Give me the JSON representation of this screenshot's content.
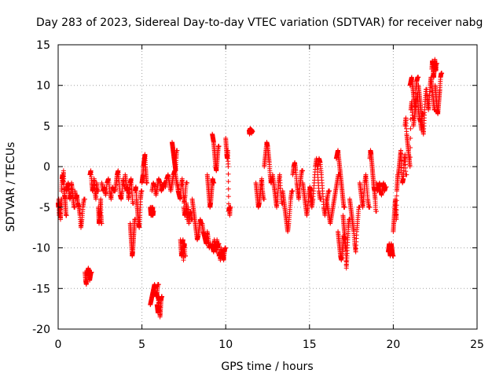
{
  "chart_data": {
    "type": "scatter",
    "title": "Day 283 of 2023, Sidereal Day-to-day VTEC variation (SDTVAR) for receiver nabg",
    "xlabel": "GPS time / hours",
    "ylabel": "SDTVAR / TECUs",
    "xlim": [
      0,
      25
    ],
    "ylim": [
      -20,
      15
    ],
    "xticks": [
      0,
      5,
      10,
      15,
      20,
      25
    ],
    "yticks": [
      -20,
      -15,
      -10,
      -5,
      0,
      5,
      10,
      15
    ],
    "grid": true,
    "marker": "+",
    "color": "#ff0000",
    "series": [
      {
        "name": "SDTVAR",
        "segments": [
          {
            "x0": 0.0,
            "x1": 0.2,
            "y": [
              -4.5,
              -5,
              -4,
              -6,
              -5,
              -4.5,
              -5.5,
              -6.5,
              -5,
              -4
            ]
          },
          {
            "x0": 0.2,
            "x1": 0.5,
            "y": [
              -3,
              -1.5,
              -1,
              -2,
              -0.5,
              -2.5,
              -3.5,
              -4,
              -5,
              -6
            ]
          },
          {
            "x0": 0.5,
            "x1": 1.0,
            "y": [
              -3,
              -2.5,
              -2,
              -3,
              -4,
              -3.5,
              -2,
              -3,
              -4,
              -5
            ]
          },
          {
            "x0": 1.0,
            "x1": 1.6,
            "y": [
              -3,
              -4,
              -3.5,
              -4.5,
              -5,
              -6,
              -7.5,
              -6.5,
              -5,
              -4
            ]
          },
          {
            "x0": 1.6,
            "x1": 2.0,
            "y": [
              -13,
              -14,
              -14.5,
              -13.5,
              -13,
              -12.5,
              -13,
              -14,
              -13.5,
              -13
            ]
          },
          {
            "x0": 1.9,
            "x1": 2.4,
            "y": [
              -1,
              -0.5,
              -2,
              -3,
              -2.5,
              -1.5,
              -3,
              -4,
              -2,
              -3
            ]
          },
          {
            "x0": 2.4,
            "x1": 2.6,
            "y": [
              -5,
              -6,
              -7,
              -6.5,
              -5.5,
              -6,
              -5,
              -4,
              -6,
              -7
            ]
          },
          {
            "x0": 2.6,
            "x1": 3.4,
            "y": [
              -2,
              -3,
              -2.5,
              -3.5,
              -2,
              -1.5,
              -3,
              -4,
              -2.5,
              -3
            ]
          },
          {
            "x0": 3.4,
            "x1": 4.0,
            "y": [
              -3,
              -2,
              -1,
              -0.5,
              -2,
              -3.5,
              -4,
              -3,
              -1.5,
              -2.5
            ]
          },
          {
            "x0": 4.0,
            "x1": 4.5,
            "y": [
              -1,
              -2,
              -3,
              -2.5,
              -4,
              -3,
              -2,
              -1.5,
              -3,
              -4.5
            ]
          },
          {
            "x0": 4.3,
            "x1": 4.6,
            "y": [
              -7,
              -8,
              -9,
              -10,
              -11,
              -10.5,
              -9.5,
              -8.5,
              -7.5,
              -6.5
            ]
          },
          {
            "x0": 4.6,
            "x1": 5.0,
            "y": [
              -3,
              -2.5,
              -4,
              -5,
              -6,
              -7,
              -7.5,
              -6,
              -4,
              -3
            ]
          },
          {
            "x0": 5.0,
            "x1": 5.3,
            "y": [
              -2,
              -1.5,
              -1,
              0,
              0.5,
              1,
              1.5,
              0,
              -1,
              -2
            ]
          },
          {
            "x0": 5.5,
            "x1": 5.7,
            "y": [
              -5,
              -5.5,
              -6,
              -5.5,
              -5,
              -6,
              -5.5,
              -5,
              -6,
              -5.5
            ]
          },
          {
            "x0": 5.5,
            "x1": 6.0,
            "y": [
              -17,
              -16.5,
              -16,
              -15.5,
              -15,
              -14.5,
              -15,
              -16,
              -15.5,
              -14.5
            ]
          },
          {
            "x0": 5.9,
            "x1": 6.2,
            "y": [
              -17,
              -17.5,
              -18,
              -16.5,
              -16,
              -17,
              -18.5,
              -17.5,
              -16.5,
              -16
            ]
          },
          {
            "x0": 5.6,
            "x1": 6.4,
            "y": [
              -3,
              -2,
              -2.5,
              -3.5,
              -2.5,
              -1.5,
              -2,
              -3,
              -2.5,
              -2
            ]
          },
          {
            "x0": 6.4,
            "x1": 7.2,
            "y": [
              -2.5,
              -1.5,
              -1,
              -2,
              -3,
              -2,
              -1,
              -0.5,
              -1.5,
              -2.5
            ]
          },
          {
            "x0": 6.8,
            "x1": 7.1,
            "y": [
              3,
              2.5,
              2,
              1.5,
              1,
              0.5,
              0,
              -0.5,
              1,
              2
            ]
          },
          {
            "x0": 7.1,
            "x1": 7.7,
            "y": [
              -2,
              -3,
              -3.5,
              -4,
              -2.5,
              -1.5,
              -3,
              -4.5,
              -3.5,
              -2
            ]
          },
          {
            "x0": 7.3,
            "x1": 7.6,
            "y": [
              -9,
              -10,
              -11,
              -10.5,
              -9.5,
              -9,
              -11.5,
              -10,
              -9.5,
              -11
            ]
          },
          {
            "x0": 7.5,
            "x1": 8.0,
            "y": [
              -5,
              -6,
              -5.5,
              -4.5,
              -6.5,
              -5,
              -7,
              -6,
              -5.5,
              -6.5
            ]
          },
          {
            "x0": 8.0,
            "x1": 8.6,
            "y": [
              -4,
              -5,
              -6,
              -7,
              -8,
              -9,
              -8.5,
              -7.5,
              -6.5,
              -7
            ]
          },
          {
            "x0": 8.6,
            "x1": 9.2,
            "y": [
              -7,
              -8,
              -8.5,
              -9,
              -9.5,
              -8,
              -9,
              -10,
              -9.5,
              -10
            ]
          },
          {
            "x0": 9.2,
            "x1": 9.6,
            "y": [
              -9.5,
              -10,
              -10.5,
              -9,
              -10,
              -9.5,
              -10.5,
              -9,
              -10,
              -9.5
            ]
          },
          {
            "x0": 8.9,
            "x1": 9.3,
            "y": [
              -1,
              -2,
              -3,
              -4,
              -5,
              -4.5,
              -3.5,
              -2.5,
              -1.5,
              -2
            ]
          },
          {
            "x0": 9.2,
            "x1": 9.6,
            "y": [
              4,
              3.5,
              3,
              2,
              1,
              0,
              -0.5,
              0.5,
              1.5,
              2.5
            ]
          },
          {
            "x0": 9.6,
            "x1": 10.0,
            "y": [
              -11,
              -10.5,
              -11.5,
              -10,
              -11,
              -10.5,
              -11,
              -11.5,
              -10.5,
              -10
            ]
          },
          {
            "x0": 10.0,
            "x1": 10.3,
            "y": [
              3.5,
              2.5,
              1.5,
              1,
              2,
              0,
              -5.5,
              -5,
              -6,
              -5
            ]
          },
          {
            "x0": 11.4,
            "x1": 11.6,
            "y": [
              4.5,
              4,
              4.3,
              4.7,
              4.2,
              4.4,
              4.6,
              4.1,
              4.5,
              4.3
            ]
          },
          {
            "x0": 11.8,
            "x1": 12.3,
            "y": [
              -2,
              -3,
              -4,
              -5,
              -4.5,
              -3.5,
              -2.5,
              -1.5,
              -3,
              -4
            ]
          },
          {
            "x0": 12.3,
            "x1": 12.8,
            "y": [
              0,
              1,
              2,
              3,
              2.5,
              1.5,
              0.5,
              -1,
              -2,
              -1.5
            ]
          },
          {
            "x0": 12.8,
            "x1": 13.4,
            "y": [
              -1,
              -2,
              -3,
              -4,
              -5,
              -3.5,
              -2,
              -1,
              -3,
              -4.5
            ]
          },
          {
            "x0": 13.4,
            "x1": 14.0,
            "y": [
              -3,
              -4,
              -5,
              -6,
              -7,
              -8,
              -7,
              -5.5,
              -4,
              -3
            ]
          },
          {
            "x0": 14.0,
            "x1": 14.6,
            "y": [
              -1,
              0,
              0.5,
              -0.5,
              -2,
              -3,
              -4,
              -2.5,
              -1.5,
              -0.5
            ]
          },
          {
            "x0": 14.6,
            "x1": 15.2,
            "y": [
              -2,
              -3,
              -4,
              -5,
              -6,
              -5,
              -3.5,
              -2.5,
              -3,
              -4
            ]
          },
          {
            "x0": 15.0,
            "x1": 15.7,
            "y": [
              -3,
              -4,
              -5,
              -4,
              -2,
              0,
              1,
              -1,
              -3,
              -4
            ]
          },
          {
            "x0": 15.5,
            "x1": 16.2,
            "y": [
              0,
              1,
              0.5,
              -1,
              -3,
              -5,
              -6,
              -5,
              -4,
              -3
            ]
          },
          {
            "x0": 16.0,
            "x1": 16.8,
            "y": [
              -4,
              -5,
              -6,
              -7,
              -6,
              -5,
              -4,
              -3,
              -2,
              -1
            ]
          },
          {
            "x0": 16.7,
            "x1": 17.2,
            "y": [
              -8,
              -9,
              -10,
              -11,
              -11.5,
              -10.5,
              -9.5,
              -8.5,
              -9,
              -10
            ]
          },
          {
            "x0": 16.6,
            "x1": 17.1,
            "y": [
              1,
              1.5,
              2,
              1,
              0,
              -1,
              -2,
              -3,
              -4,
              -5
            ]
          },
          {
            "x0": 17.0,
            "x1": 17.4,
            "y": [
              -6,
              -7,
              -8,
              -9,
              -10,
              -12.5,
              -11,
              -9,
              -7.5,
              -6.5
            ]
          },
          {
            "x0": 17.4,
            "x1": 18.0,
            "y": [
              -4,
              -5,
              -6,
              -7,
              -8,
              -9.5,
              -10.5,
              -8,
              -6.5,
              -5
            ]
          },
          {
            "x0": 18.0,
            "x1": 18.6,
            "y": [
              -2,
              -3,
              -4,
              -5,
              -3.5,
              -2,
              -1,
              -2.5,
              -4,
              -5
            ]
          },
          {
            "x0": 18.6,
            "x1": 19.0,
            "y": [
              1,
              2,
              1.5,
              0.5,
              -0.5,
              -1.5,
              -2.5,
              -3,
              -4,
              -5.5
            ]
          },
          {
            "x0": 19.0,
            "x1": 19.6,
            "y": [
              -2,
              -3,
              -2.5,
              -2,
              -3,
              -3.5,
              -2.5,
              -2,
              -3,
              -2.5
            ]
          },
          {
            "x0": 19.7,
            "x1": 20.0,
            "y": [
              -10.5,
              -10,
              -9.5,
              -10.5,
              -11,
              -10,
              -9.5,
              -10,
              -10.5,
              -11
            ]
          },
          {
            "x0": 20.0,
            "x1": 20.3,
            "y": [
              -8,
              -7,
              -6,
              -5,
              -4,
              -5.5,
              -6.5,
              -3,
              -2,
              -1
            ]
          },
          {
            "x0": 20.3,
            "x1": 20.8,
            "y": [
              -1,
              0,
              1,
              2,
              -0.5,
              -2,
              -1.5,
              0.5,
              1.5,
              -1
            ]
          },
          {
            "x0": 20.7,
            "x1": 21.2,
            "y": [
              5,
              6,
              4,
              3,
              2,
              1,
              0,
              7,
              8,
              6
            ]
          },
          {
            "x0": 21.0,
            "x1": 21.5,
            "y": [
              10,
              10.5,
              11,
              10,
              9,
              8,
              7,
              9.5,
              10.5,
              11
            ]
          },
          {
            "x0": 21.2,
            "x1": 21.8,
            "y": [
              5,
              6,
              7,
              8,
              9,
              7,
              6,
              5.5,
              4.5,
              6.5
            ]
          },
          {
            "x0": 21.5,
            "x1": 22.0,
            "y": [
              10,
              9,
              8,
              7,
              6,
              5,
              4,
              6,
              8,
              9.5
            ]
          },
          {
            "x0": 22.0,
            "x1": 22.5,
            "y": [
              9,
              8,
              7,
              8.5,
              10,
              11,
              10,
              9,
              8,
              7
            ]
          },
          {
            "x0": 22.3,
            "x1": 22.6,
            "y": [
              12,
              13,
              12.5,
              11.5,
              11,
              12,
              13.2,
              12.3,
              11.8,
              12.7
            ]
          },
          {
            "x0": 22.5,
            "x1": 22.9,
            "y": [
              10,
              9,
              8,
              7,
              6.5,
              7.5,
              8.5,
              9.5,
              11,
              11.5
            ]
          }
        ]
      }
    ]
  }
}
